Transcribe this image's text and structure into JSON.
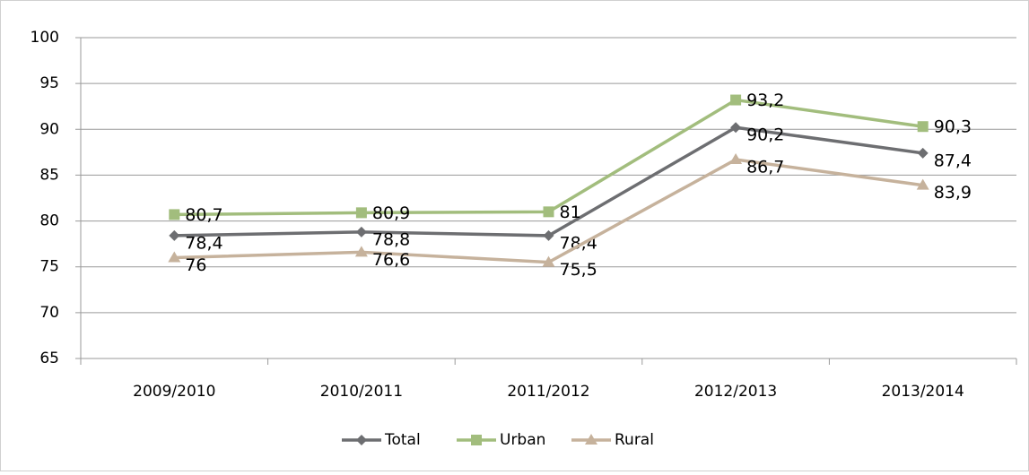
{
  "chart_data": {
    "type": "line",
    "categories": [
      "2009/2010",
      "2010/2011",
      "2011/2012",
      "2012/2013",
      "2013/2014"
    ],
    "series": [
      {
        "name": "Total",
        "color": "#6d6e71",
        "marker": "diamond",
        "values": [
          78.4,
          78.8,
          78.4,
          90.2,
          87.4
        ],
        "value_labels": [
          "78,4",
          "78,8",
          "78,4",
          "90,2",
          "87,4"
        ]
      },
      {
        "name": "Urban",
        "color": "#a2bd7d",
        "marker": "square",
        "values": [
          80.7,
          80.9,
          81,
          93.2,
          90.3
        ],
        "value_labels": [
          "80,7",
          "80,9",
          "81",
          "93,2",
          "90,3"
        ]
      },
      {
        "name": "Rural",
        "color": "#c6b29c",
        "marker": "triangle",
        "values": [
          76,
          76.6,
          75.5,
          86.7,
          83.9
        ],
        "value_labels": [
          "76",
          "76,6",
          "75,5",
          "86,7",
          "83,9"
        ]
      }
    ],
    "ylim": [
      65,
      100
    ],
    "yticks": [
      65,
      70,
      75,
      80,
      85,
      90,
      95,
      100
    ],
    "grid": true,
    "legend": "bottom"
  }
}
